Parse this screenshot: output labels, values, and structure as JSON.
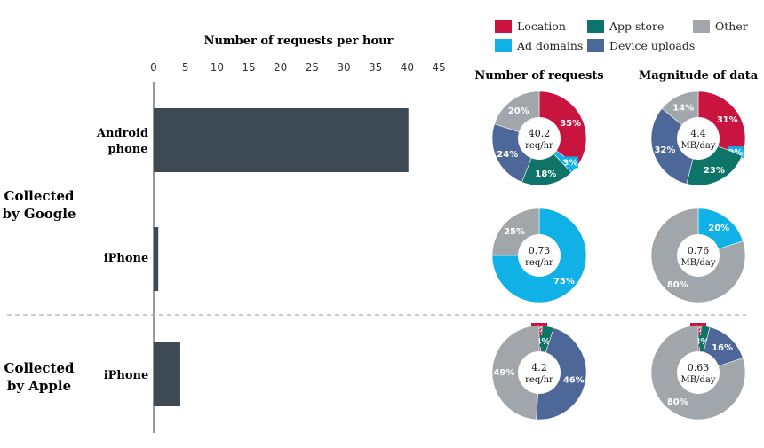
{
  "colors": {
    "Location": "#c8143f",
    "App store": "#0f7468",
    "Other": "#a1a6aa",
    "Ad domains": "#0fb1e6",
    "Device uploads": "#4d6799",
    "bar": "#3d4a54",
    "divider": "#aaaaaa"
  },
  "legend": {
    "items": [
      "Location",
      "App store",
      "Other",
      "Ad domains",
      "Device uploads"
    ]
  },
  "chart_data": [
    {
      "type": "bar",
      "orientation": "horizontal",
      "title": "Number of requests per hour",
      "xlim": [
        0,
        45
      ],
      "xticks": [
        0,
        5,
        10,
        15,
        20,
        25,
        30,
        35,
        40,
        45
      ],
      "groups": [
        {
          "label": "Collected by Google",
          "line1": "Collected",
          "line2": "by Google"
        },
        {
          "label": "Collected by Apple",
          "line1": "Collected",
          "line2": "by Apple"
        }
      ],
      "bars": [
        {
          "group": 0,
          "label1": "Android",
          "label2": "phone",
          "value": 40.2
        },
        {
          "group": 0,
          "label1": "iPhone",
          "label2": "",
          "value": 0.73
        },
        {
          "group": 1,
          "label1": "iPhone",
          "label2": "",
          "value": 4.2
        }
      ]
    },
    {
      "type": "pie",
      "title": "Number of requests",
      "donuts": [
        {
          "center1": "40.2",
          "center2": "req/hr",
          "slices": [
            {
              "name": "Location",
              "value": 35,
              "label": "35%"
            },
            {
              "name": "Ad domains",
              "value": 3,
              "label": "3%"
            },
            {
              "name": "App store",
              "value": 18,
              "label": "18%"
            },
            {
              "name": "Device uploads",
              "value": 24,
              "label": "24%"
            },
            {
              "name": "Other",
              "value": 20,
              "label": "20%"
            }
          ]
        },
        {
          "center1": "0.73",
          "center2": "req/hr",
          "slices": [
            {
              "name": "Ad domains",
              "value": 75,
              "label": "75%"
            },
            {
              "name": "Other",
              "value": 25,
              "label": "25%"
            }
          ]
        },
        {
          "center1": "4.2",
          "center2": "req/hr",
          "slices": [
            {
              "name": "Location",
              "value": 1,
              "label": "1%"
            },
            {
              "name": "App store",
              "value": 4,
              "label": "4%"
            },
            {
              "name": "Device uploads",
              "value": 46,
              "label": "46%"
            },
            {
              "name": "Other",
              "value": 49,
              "label": "49%"
            }
          ]
        }
      ]
    },
    {
      "type": "pie",
      "title": "Magnitude of data",
      "donuts": [
        {
          "center1": "4.4",
          "center2": "MB/day",
          "slices": [
            {
              "name": "Location",
              "value": 31,
              "label": "31%"
            },
            {
              "name": "Ad domains",
              "value": 0,
              "label": "0%"
            },
            {
              "name": "App store",
              "value": 23,
              "label": "23%"
            },
            {
              "name": "Device uploads",
              "value": 32,
              "label": "32%"
            },
            {
              "name": "Other",
              "value": 14,
              "label": "14%"
            }
          ]
        },
        {
          "center1": "0.76",
          "center2": "MB/day",
          "slices": [
            {
              "name": "Ad domains",
              "value": 20,
              "label": "20%"
            },
            {
              "name": "Other",
              "value": 80,
              "label": "80%"
            }
          ]
        },
        {
          "center1": "0.63",
          "center2": "MB/day",
          "slices": [
            {
              "name": "Location",
              "value": 1,
              "label": "1%"
            },
            {
              "name": "App store",
              "value": 3,
              "label": "3%"
            },
            {
              "name": "Device uploads",
              "value": 16,
              "label": "16%"
            },
            {
              "name": "Other",
              "value": 80,
              "label": "80%"
            }
          ]
        }
      ]
    }
  ]
}
